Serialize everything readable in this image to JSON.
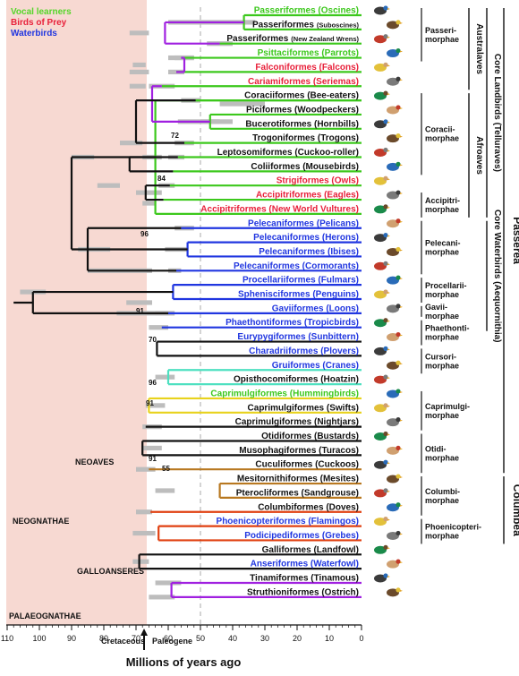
{
  "legend": [
    {
      "label": "Vocal learners",
      "color": "#55d62a"
    },
    {
      "label": "Birds of Prey",
      "color": "#e8203a"
    },
    {
      "label": "Waterbirds",
      "color": "#2036e0"
    }
  ],
  "colors": {
    "green": "#3cc81c",
    "red": "#e8203a",
    "blue": "#2036e0",
    "teal": "#4ee0c0",
    "yellow": "#e8d21c",
    "brown": "#b87820",
    "orange": "#e04010",
    "purple": "#a020e0",
    "black": "#111111",
    "ci_bar": "#bdbdbd",
    "background": "#f7d9d2"
  },
  "taxa": [
    {
      "main": "Passeriformes (Oscines)",
      "color": "green"
    },
    {
      "main": "Passeriformes",
      "sub": "(Suboscines)",
      "color": "black"
    },
    {
      "main": "Passeriformes",
      "sub": "(New Zealand Wrens)",
      "color": "black"
    },
    {
      "main": "Psittaciformes (Parrots)",
      "color": "green"
    },
    {
      "main": "Falconiformes (Falcons)",
      "color": "red"
    },
    {
      "main": "Cariamiformes (Seriemas)",
      "color": "red"
    },
    {
      "main": "Coraciiformes (Bee-eaters)",
      "color": "black"
    },
    {
      "main": "Piciformes (Woodpeckers)",
      "color": "black"
    },
    {
      "main": "Bucerotiformes (Hornbills)",
      "color": "black"
    },
    {
      "main": "Trogoniformes (Trogons)",
      "color": "black"
    },
    {
      "main": "Leptosomiformes (Cuckoo-roller)",
      "color": "black"
    },
    {
      "main": "Coliiformes (Mousebirds)",
      "color": "black"
    },
    {
      "main": "Strigiformes (Owls)",
      "color": "red"
    },
    {
      "main": "Accipitriformes (Eagles)",
      "color": "red"
    },
    {
      "main": "Accipitriformes (New World Vultures)",
      "color": "red"
    },
    {
      "main": "Pelecaniformes (Pelicans)",
      "color": "blue"
    },
    {
      "main": "Pelecaniformes (Herons)",
      "color": "blue"
    },
    {
      "main": "Pelecaniformes (Ibises)",
      "color": "blue"
    },
    {
      "main": "Pelecaniformes (Cormorants)",
      "color": "blue"
    },
    {
      "main": "Procellariiformes (Fulmars)",
      "color": "blue"
    },
    {
      "main": "Sphenisciformes (Penguins)",
      "color": "blue"
    },
    {
      "main": "Gaviiformes (Loons)",
      "color": "blue"
    },
    {
      "main": "Phaethontiformes (Tropicbirds)",
      "color": "blue"
    },
    {
      "main": "Eurypygiformes (Sunbittern)",
      "color": "blue"
    },
    {
      "main": "Charadriiformes (Plovers)",
      "color": "blue"
    },
    {
      "main": "Gruiformes (Cranes)",
      "color": "blue"
    },
    {
      "main": "Opisthocomiformes (Hoatzin)",
      "color": "black"
    },
    {
      "main": "Caprimulgiformes (Hummingbirds)",
      "color": "green"
    },
    {
      "main": "Caprimulgiformes (Swifts)",
      "color": "black"
    },
    {
      "main": "Caprimulgiformes (Nightjars)",
      "color": "black"
    },
    {
      "main": "Otidiformes (Bustards)",
      "color": "black"
    },
    {
      "main": "Musophagiformes (Turacos)",
      "color": "black"
    },
    {
      "main": "Cuculiformes (Cuckoos)",
      "color": "black"
    },
    {
      "main": "Mesitornithiformes (Mesites)",
      "color": "black"
    },
    {
      "main": "Pterocliformes (Sandgrouse)",
      "color": "black"
    },
    {
      "main": "Columbiformes (Doves)",
      "color": "black"
    },
    {
      "main": "Phoenicopteriformes (Flamingos)",
      "color": "blue"
    },
    {
      "main": "Podicipediformes (Grebes)",
      "color": "blue"
    },
    {
      "main": "Galliformes (Landfowl)",
      "color": "black"
    },
    {
      "main": "Anseriformes (Waterfowl)",
      "color": "blue"
    },
    {
      "main": "Tinamiformes (Tinamous)",
      "color": "black"
    },
    {
      "main": "Struthioniformes (Ostrich)",
      "color": "black"
    }
  ],
  "groups": [
    {
      "label": [
        "Passeri-",
        "morphae"
      ],
      "from": 0,
      "to": 3
    },
    {
      "label": [
        "Coracii-",
        "morphae"
      ],
      "from": 6,
      "to": 11
    },
    {
      "label": [
        "Accipitri-",
        "morphae"
      ],
      "from": 13,
      "to": 14
    },
    {
      "label": [
        "Pelecani-",
        "morphae"
      ],
      "from": 15,
      "to": 18
    },
    {
      "label": [
        "Procellarii-",
        "morphae"
      ],
      "from": 19,
      "to": 20
    },
    {
      "label": [
        "Gavii-",
        "morphae"
      ],
      "from": 21,
      "to": 21
    },
    {
      "label": [
        "Phaethonti-",
        "morphae"
      ],
      "from": 22,
      "to": 23
    },
    {
      "label": [
        "Cursori-",
        "morphae"
      ],
      "from": 24,
      "to": 25
    },
    {
      "label": [
        "Caprimulgi-",
        "morphae"
      ],
      "from": 27,
      "to": 29
    },
    {
      "label": [
        "Otidi-",
        "morphae"
      ],
      "from": 30,
      "to": 32
    },
    {
      "label": [
        "Columbi-",
        "morphae"
      ],
      "from": 33,
      "to": 35
    },
    {
      "label": [
        "Phoenicopteri-",
        "morphae"
      ],
      "from": 36,
      "to": 37
    }
  ],
  "side_groups": [
    {
      "label": "Australaves",
      "from": 0,
      "to": 5
    },
    {
      "label": "Afroaves",
      "from": 6,
      "to": 14
    },
    {
      "label": "Core Landbirds (Telluraves)",
      "from": 0,
      "to": 14
    },
    {
      "label": "Core Waterbirds (Aequornithia)",
      "from": 15,
      "to": 22
    },
    {
      "label": "Passerea",
      "from": 0,
      "to": 32
    },
    {
      "label": "Columbea",
      "from": 33,
      "to": 37
    }
  ],
  "inner_labels": [
    "NEOAVES",
    "NEOGNATHAE",
    "GALLOANSERES",
    "PALAEOGNATHAE"
  ],
  "node_support": [
    "72",
    "84",
    "96",
    "91",
    "70",
    "96",
    "91",
    "91",
    "55"
  ],
  "boundary": {
    "left": "Cretaceous",
    "right": "Paleogene",
    "age_ma": 66
  },
  "axis": {
    "title": "Millions of years ago",
    "ticks": [
      110,
      100,
      90,
      80,
      70,
      60,
      50,
      40,
      30,
      20,
      10,
      0
    ],
    "range_ma": [
      110,
      0
    ],
    "dashed_line_ma": 50
  },
  "clades": [
    {
      "x": 36.5,
      "k": [
        0,
        1
      ],
      "c": "green"
    },
    {
      "x": 44,
      "k": [
        2
      ],
      "c": "green"
    },
    {
      "x": 56,
      "k": [
        3
      ],
      "c": "green"
    },
    {
      "x": 57.5,
      "k": [
        4
      ],
      "c": "green"
    },
    {
      "x": 62,
      "k": [
        5
      ],
      "c": "green"
    },
    {
      "x": 47,
      "k": [
        7,
        8
      ],
      "c": "green"
    },
    {
      "x": 51.5,
      "k": [
        6
      ],
      "c": "green"
    },
    {
      "x": 55,
      "k": [
        9
      ],
      "c": "green"
    },
    {
      "x": 57,
      "k": [
        10
      ],
      "c": "green"
    },
    {
      "x": 58.5,
      "k": [
        11
      ],
      "c": "green"
    },
    {
      "x": 59.5,
      "k": [
        12
      ],
      "c": "green"
    },
    {
      "x": 61.5,
      "k": [
        13
      ],
      "c": "green"
    },
    {
      "x": 64,
      "k": [
        14,
        6
      ],
      "c": "green"
    },
    {
      "x": 54,
      "k": [
        16,
        17
      ],
      "c": "blue"
    },
    {
      "x": 56,
      "k": [
        15
      ],
      "c": "blue"
    },
    {
      "x": 57.5,
      "k": [
        18
      ],
      "c": "blue"
    },
    {
      "x": 58.5,
      "k": [
        19,
        20
      ],
      "c": "blue"
    },
    {
      "x": 60,
      "k": [
        21
      ],
      "c": "blue"
    },
    {
      "x": 62,
      "k": [
        22
      ],
      "c": "blue"
    },
    {
      "x": 63.5,
      "k": [
        23,
        24
      ],
      "c": "black"
    },
    {
      "x": 60,
      "k": [
        25,
        26
      ],
      "c": "teal"
    },
    {
      "x": 66,
      "k": [
        27,
        28
      ],
      "c": "yellow"
    },
    {
      "x": 67,
      "k": [
        29
      ],
      "c": "black"
    },
    {
      "x": 68,
      "k": [
        30,
        31
      ],
      "c": "black"
    },
    {
      "x": 44,
      "k": [
        33,
        34
      ],
      "c": "brown"
    },
    {
      "x": 66,
      "k": [
        32
      ],
      "c": "brown"
    },
    {
      "x": 63,
      "k": [
        36,
        37
      ],
      "c": "orange"
    },
    {
      "x": 65.5,
      "k": [
        35
      ],
      "c": "orange"
    },
    {
      "x": 69,
      "k": [
        38,
        39
      ],
      "c": "black"
    },
    {
      "x": 59,
      "k": [
        40,
        41
      ],
      "c": "purple"
    },
    {
      "x": 61,
      "k": [
        42,
        43
      ],
      "c": "purple"
    },
    {
      "x": 55,
      "k": [
        44,
        45
      ],
      "c": "purple"
    },
    {
      "x": 65,
      "k": [
        46,
        47
      ],
      "c": "purple"
    },
    {
      "x": 70,
      "k": [
        48,
        49
      ],
      "c": "black"
    },
    {
      "x": 72,
      "k": [
        50,
        51
      ],
      "c": "black"
    },
    {
      "x": 67,
      "k": [
        52,
        53
      ],
      "c": "black"
    },
    {
      "x": 90,
      "k": [
        54,
        55
      ],
      "c": "black"
    },
    {
      "x": 85,
      "k": [
        56,
        57
      ],
      "c": "black"
    },
    {
      "x": 102,
      "k": [
        58,
        59
      ],
      "c": "black"
    }
  ],
  "ci": [
    [
      0,
      40,
      33
    ],
    [
      1,
      48,
      40
    ],
    [
      2,
      60,
      52
    ],
    [
      3,
      60,
      55
    ],
    [
      4,
      66,
      58
    ],
    [
      5,
      57,
      40
    ],
    [
      6,
      56,
      50
    ],
    [
      7,
      58,
      52
    ],
    [
      8,
      60,
      55
    ],
    [
      10,
      63,
      58
    ],
    [
      12,
      68,
      62
    ],
    [
      14,
      58,
      52
    ],
    [
      13,
      61,
      54
    ],
    [
      15,
      60,
      56
    ],
    [
      17,
      64,
      60
    ],
    [
      18,
      66,
      60
    ],
    [
      20,
      64,
      58
    ],
    [
      21,
      67,
      61
    ],
    [
      22,
      68,
      62
    ],
    [
      23,
      68,
      62
    ],
    [
      24,
      64,
      58
    ],
    [
      25,
      70,
      64
    ],
    [
      26,
      71,
      64
    ],
    [
      27,
      70,
      65
    ],
    [
      28,
      71,
      66
    ],
    [
      30,
      72,
      66
    ],
    [
      31,
      71,
      67
    ],
    [
      32,
      44,
      30
    ],
    [
      33,
      50,
      44
    ],
    [
      35,
      70,
      62
    ],
    [
      36,
      68,
      64
    ],
    [
      38,
      73,
      65
    ],
    [
      40,
      64,
      56
    ],
    [
      41,
      66,
      58
    ],
    [
      42,
      60,
      40
    ],
    [
      44,
      58,
      52
    ],
    [
      45,
      72,
      66
    ],
    [
      46,
      72,
      67
    ],
    [
      49,
      75,
      68
    ],
    [
      52,
      82,
      75
    ],
    [
      54,
      90,
      83
    ],
    [
      55,
      88,
      78
    ],
    [
      57,
      85,
      65
    ],
    [
      58,
      106,
      98
    ],
    [
      59,
      76,
      58
    ]
  ]
}
